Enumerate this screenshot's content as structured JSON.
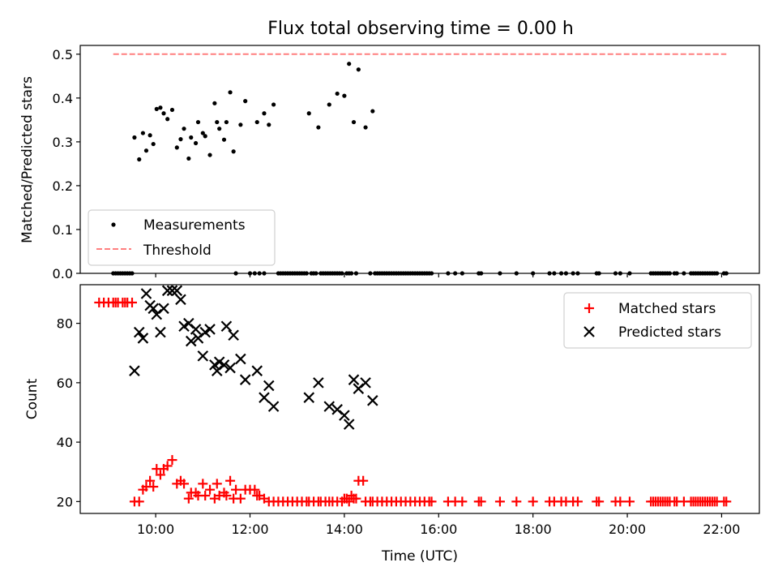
{
  "chart_data": [
    {
      "type": "scatter",
      "title": "Flux total observing time = 0.00 h",
      "xlabel": "",
      "ylabel": "Matched/Predicted stars",
      "xlim": [
        8.4,
        22.8
      ],
      "ylim": [
        0.0,
        0.52
      ],
      "yticks": [
        0.0,
        0.1,
        0.2,
        0.3,
        0.4,
        0.5
      ],
      "grid": false,
      "legend": "lower-left",
      "colors": {
        "measurements": "#000000",
        "threshold": "#ff7f7f"
      },
      "series": [
        {
          "name": "Measurements",
          "marker": "dot",
          "x": [
            9.55,
            9.65,
            9.73,
            9.8,
            9.88,
            9.95,
            10.02,
            10.1,
            10.17,
            10.25,
            10.35,
            10.45,
            10.53,
            10.6,
            10.7,
            10.75,
            10.85,
            10.9,
            11.0,
            11.05,
            11.15,
            11.25,
            11.3,
            11.35,
            11.45,
            11.5,
            11.58,
            11.65,
            11.8,
            11.9,
            12.15,
            12.3,
            12.4,
            12.5,
            13.25,
            13.45,
            13.68,
            13.85,
            14.0,
            14.1,
            14.2,
            14.3,
            14.45,
            14.6
          ],
          "y": [
            0.31,
            0.26,
            0.32,
            0.28,
            0.315,
            0.295,
            0.375,
            0.378,
            0.365,
            0.352,
            0.373,
            0.287,
            0.306,
            0.33,
            0.262,
            0.31,
            0.297,
            0.345,
            0.32,
            0.313,
            0.27,
            0.388,
            0.345,
            0.33,
            0.305,
            0.345,
            0.413,
            0.278,
            0.339,
            0.393,
            0.345,
            0.365,
            0.339,
            0.385,
            0.365,
            0.333,
            0.385,
            0.41,
            0.405,
            0.478,
            0.345,
            0.465,
            0.333,
            0.37
          ],
          "zero_x": [
            9.1,
            9.15,
            9.2,
            9.25,
            9.3,
            9.35,
            9.4,
            9.45,
            9.5,
            11.7,
            12.0,
            12.1,
            12.2,
            12.3,
            12.6,
            12.65,
            12.7,
            12.75,
            12.8,
            12.85,
            12.9,
            12.95,
            13.0,
            13.05,
            13.1,
            13.15,
            13.2,
            13.3,
            13.35,
            13.4,
            13.5,
            13.55,
            13.6,
            13.65,
            13.7,
            13.75,
            13.8,
            13.85,
            13.9,
            13.95,
            14.05,
            14.1,
            14.15,
            14.25,
            14.55,
            14.65,
            14.7,
            14.75,
            14.8,
            14.85,
            14.9,
            14.95,
            15.0,
            15.05,
            15.1,
            15.15,
            15.2,
            15.25,
            15.3,
            15.35,
            15.4,
            15.45,
            15.5,
            15.55,
            15.6,
            15.65,
            15.7,
            15.75,
            15.8,
            15.85,
            16.2,
            16.35,
            16.5,
            16.85,
            16.9,
            17.3,
            17.65,
            18.0,
            18.35,
            18.45,
            18.6,
            18.7,
            18.85,
            18.95,
            19.35,
            19.4,
            19.75,
            19.85,
            20.05,
            20.5,
            20.55,
            20.6,
            20.65,
            20.7,
            20.75,
            20.8,
            20.85,
            20.9,
            21.0,
            21.05,
            21.2,
            21.35,
            21.4,
            21.45,
            21.5,
            21.55,
            21.6,
            21.65,
            21.7,
            21.75,
            21.8,
            21.85,
            21.9,
            22.05,
            22.1
          ]
        },
        {
          "name": "Threshold",
          "style": "dashed-line",
          "x": [
            9.1,
            22.1
          ],
          "y": [
            0.5,
            0.5
          ]
        }
      ]
    },
    {
      "type": "scatter",
      "title": "",
      "xlabel": "Time (UTC)",
      "ylabel": "Count",
      "xlim": [
        8.4,
        22.8
      ],
      "ylim": [
        16.0,
        93.0
      ],
      "yticks": [
        20,
        40,
        60,
        80
      ],
      "xticks": [
        10,
        12,
        14,
        16,
        18,
        20,
        22
      ],
      "xticklabels": [
        "10:00",
        "12:00",
        "14:00",
        "16:00",
        "18:00",
        "20:00",
        "22:00"
      ],
      "grid": false,
      "legend": "top-right",
      "colors": {
        "matched": "#ff0000",
        "predicted": "#000000"
      },
      "series": [
        {
          "name": "Matched stars",
          "marker": "plus",
          "x": [
            8.8,
            8.9,
            9.0,
            9.1,
            9.15,
            9.2,
            9.3,
            9.35,
            9.4,
            9.5,
            9.55,
            9.65,
            9.73,
            9.8,
            9.88,
            9.95,
            10.02,
            10.1,
            10.17,
            10.25,
            10.35,
            10.45,
            10.53,
            10.6,
            10.7,
            10.75,
            10.85,
            10.9,
            11.0,
            11.05,
            11.15,
            11.25,
            11.3,
            11.35,
            11.45,
            11.5,
            11.58,
            11.65,
            11.7,
            11.8,
            11.9,
            12.0,
            12.1,
            12.15,
            12.2,
            12.3,
            12.4,
            12.5,
            12.6,
            12.7,
            12.8,
            12.9,
            13.0,
            13.1,
            13.2,
            13.25,
            13.35,
            13.45,
            13.5,
            13.6,
            13.68,
            13.75,
            13.85,
            13.95,
            14.0,
            14.05,
            14.1,
            14.15,
            14.2,
            14.25,
            14.3,
            14.4,
            14.45,
            14.55,
            14.6,
            14.7,
            14.8,
            14.9,
            15.0,
            15.1,
            15.2,
            15.3,
            15.4,
            15.5,
            15.6,
            15.7,
            15.8,
            15.85,
            16.2,
            16.35,
            16.5,
            16.85,
            16.9,
            17.3,
            17.65,
            18.0,
            18.35,
            18.45,
            18.6,
            18.7,
            18.85,
            18.95,
            19.35,
            19.4,
            19.75,
            19.85,
            20.05,
            20.5,
            20.55,
            20.6,
            20.65,
            20.7,
            20.75,
            20.8,
            20.85,
            20.9,
            21.0,
            21.05,
            21.2,
            21.35,
            21.4,
            21.45,
            21.5,
            21.55,
            21.6,
            21.65,
            21.7,
            21.75,
            21.8,
            21.85,
            21.9,
            22.05,
            22.1
          ],
          "y": [
            87,
            87,
            87,
            87,
            87,
            87,
            87,
            87,
            87,
            87,
            20,
            20,
            24,
            25,
            27,
            25,
            31,
            29,
            31,
            32,
            34,
            26,
            27,
            26,
            21,
            23,
            23,
            22,
            26,
            22,
            24,
            21,
            26,
            22,
            23,
            22,
            27,
            21,
            24,
            21,
            24,
            24,
            24,
            22,
            22,
            21,
            20,
            20,
            20,
            20,
            20,
            20,
            20,
            20,
            20,
            20,
            20,
            20,
            20,
            20,
            20,
            20,
            20,
            20,
            21,
            21,
            20,
            22,
            21,
            21,
            27,
            27,
            20,
            20,
            20,
            20,
            20,
            20,
            20,
            20,
            20,
            20,
            20,
            20,
            20,
            20,
            20,
            20,
            20,
            20,
            20,
            20,
            20,
            20,
            20,
            20,
            20,
            20,
            20,
            20,
            20,
            20,
            20,
            20,
            20,
            20,
            20,
            20,
            20,
            20,
            20,
            20,
            20,
            20,
            20,
            20,
            20,
            20,
            20,
            20,
            20,
            20,
            20,
            20,
            20,
            20,
            20,
            20,
            20,
            20,
            20,
            20,
            20
          ]
        },
        {
          "name": "Predicted stars",
          "marker": "x",
          "x": [
            9.55,
            9.65,
            9.73,
            9.8,
            9.88,
            9.95,
            10.02,
            10.1,
            10.17,
            10.25,
            10.35,
            10.45,
            10.53,
            10.6,
            10.7,
            10.75,
            10.85,
            10.9,
            11.0,
            11.05,
            11.15,
            11.25,
            11.3,
            11.35,
            11.45,
            11.5,
            11.58,
            11.65,
            11.8,
            11.9,
            12.15,
            12.3,
            12.4,
            12.5,
            13.25,
            13.45,
            13.68,
            13.85,
            14.0,
            14.1,
            14.2,
            14.3,
            14.45,
            14.6
          ],
          "y": [
            64,
            77,
            75,
            90,
            86,
            85,
            83,
            77,
            85,
            91,
            91,
            91,
            88,
            79,
            80,
            74,
            78,
            75,
            69,
            77,
            78,
            66,
            64,
            67,
            66,
            79,
            65,
            76,
            68,
            61,
            64,
            55,
            59,
            52,
            55,
            60,
            52,
            51,
            49,
            46,
            61,
            58,
            60,
            54
          ]
        }
      ]
    }
  ]
}
